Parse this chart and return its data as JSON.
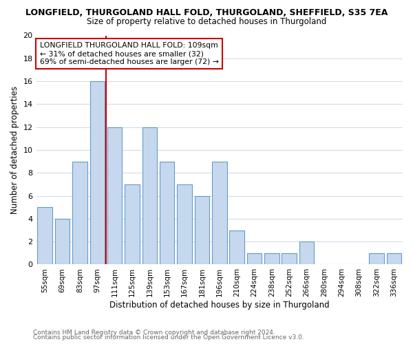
{
  "title1": "LONGFIELD, THURGOLAND HALL FOLD, THURGOLAND, SHEFFIELD, S35 7EA",
  "title2": "Size of property relative to detached houses in Thurgoland",
  "xlabel": "Distribution of detached houses by size in Thurgoland",
  "ylabel": "Number of detached properties",
  "categories": [
    "55sqm",
    "69sqm",
    "83sqm",
    "97sqm",
    "111sqm",
    "125sqm",
    "139sqm",
    "153sqm",
    "167sqm",
    "181sqm",
    "196sqm",
    "210sqm",
    "224sqm",
    "238sqm",
    "252sqm",
    "266sqm",
    "280sqm",
    "294sqm",
    "308sqm",
    "322sqm",
    "336sqm"
  ],
  "values": [
    5,
    4,
    9,
    16,
    12,
    7,
    12,
    9,
    7,
    6,
    9,
    3,
    1,
    1,
    1,
    2,
    0,
    0,
    0,
    1,
    1
  ],
  "bar_color": "#c5d8ee",
  "bar_edge_color": "#6699cc",
  "ref_line_x": 3.5,
  "ref_line_color": "#cc0000",
  "ylim": [
    0,
    20
  ],
  "yticks": [
    0,
    2,
    4,
    6,
    8,
    10,
    12,
    14,
    16,
    18,
    20
  ],
  "annotation_title": "LONGFIELD THURGOLAND HALL FOLD: 109sqm",
  "annotation_line1": "← 31% of detached houses are smaller (32)",
  "annotation_line2": "69% of semi-detached houses are larger (72) →",
  "footer1": "Contains HM Land Registry data © Crown copyright and database right 2024.",
  "footer2": "Contains public sector information licensed under the Open Government Licence v3.0.",
  "bg_color": "#ffffff",
  "plot_bg_color": "#ffffff",
  "grid_color": "#d0dce8"
}
